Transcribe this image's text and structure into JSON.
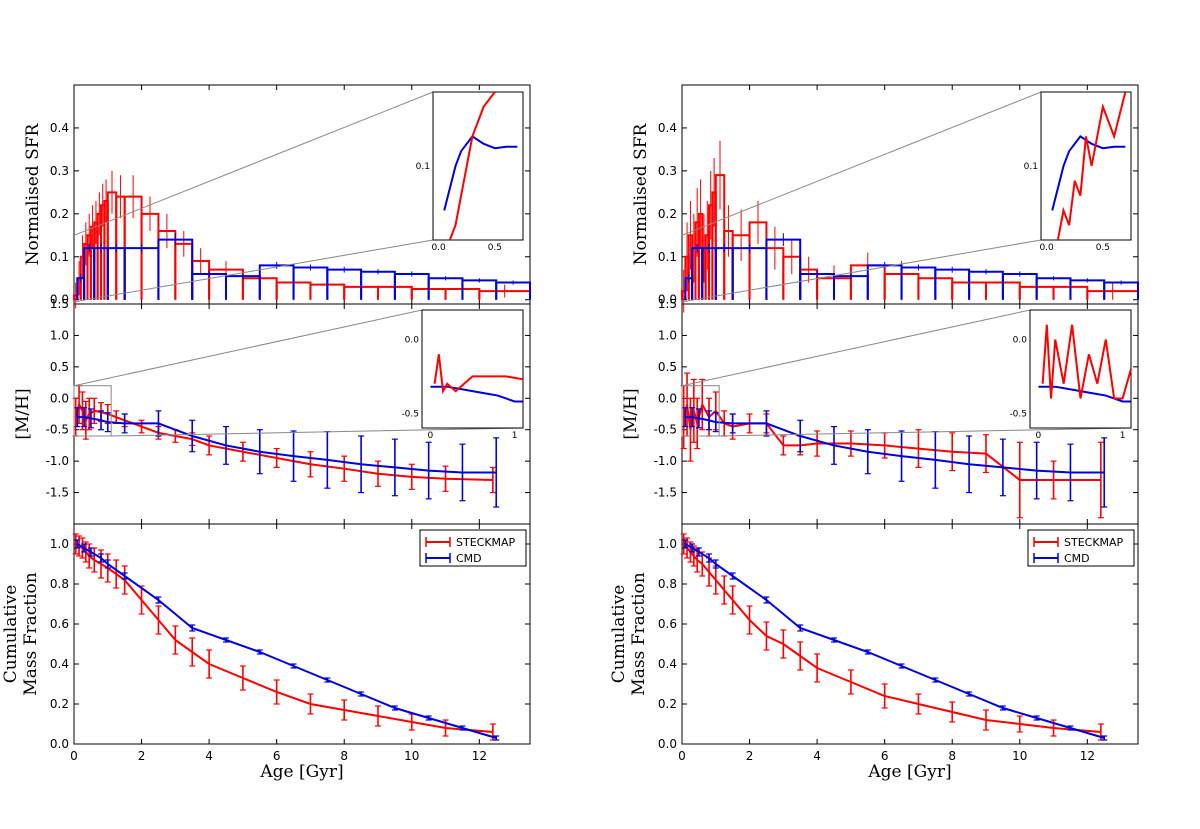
{
  "colors": {
    "steckmap": "#ff0000",
    "cmd": "#0000dd",
    "steckmap_light": "#ff9090",
    "frame": "#000000",
    "guide": "#888888"
  },
  "legend": {
    "steckmap": "STECKMAP",
    "cmd": "CMD"
  },
  "axes": {
    "sfr_ylabel": "Normalised SFR",
    "mh_ylabel": "[M/H]",
    "cmf_ylabel_line1": "Cumulative",
    "cmf_ylabel_line2": "Mass Fraction",
    "xlabel": "Age [Gyr]",
    "xlim": [
      0,
      13.5
    ],
    "x_ticks": [
      "0",
      "2",
      "4",
      "6",
      "8",
      "10",
      "12"
    ],
    "sfr_ylim": [
      -0.01,
      0.5
    ],
    "sfr_ticks": [
      "0.0",
      "0.1",
      "0.2",
      "0.3",
      "0.4"
    ],
    "mh_ylim": [
      -2.0,
      1.5
    ],
    "mh_ticks": [
      "1.5",
      "1.0",
      "0.5",
      "0.0",
      "-0.5",
      "-1.0",
      "-1.5"
    ],
    "cmf_ylim": [
      0.0,
      1.1
    ],
    "cmf_ticks": [
      "0.0",
      "0.2",
      "0.4",
      "0.6",
      "0.8",
      "1.0"
    ],
    "inset_sfr_ticks_y": [
      "0.1"
    ],
    "inset_sfr_ticks_x": [
      "0.0",
      "0.5"
    ],
    "inset_mh_ticks_y": [
      "0.0",
      "-0.5"
    ],
    "inset_mh_ticks_x": [
      "0",
      "1"
    ]
  },
  "chart_data": [
    {
      "panel": "left",
      "type": "line",
      "cmd": {
        "bins": [
          [
            0.1,
            0.3
          ],
          [
            0.3,
            0.6
          ],
          [
            0.6,
            1.0
          ],
          [
            1.0,
            1.5
          ],
          [
            1.5,
            2.5
          ],
          [
            2.5,
            3.5
          ],
          [
            3.5,
            4.5
          ],
          [
            4.5,
            5.5
          ],
          [
            5.5,
            6.5
          ],
          [
            6.5,
            7.5
          ],
          [
            7.5,
            8.5
          ],
          [
            8.5,
            9.5
          ],
          [
            9.5,
            10.5
          ],
          [
            10.5,
            11.5
          ],
          [
            11.5,
            12.5
          ],
          [
            12.5,
            13.5
          ]
        ],
        "sfr": [
          0.05,
          0.12,
          0.12,
          0.12,
          0.12,
          0.14,
          0.06,
          0.055,
          0.08,
          0.075,
          0.07,
          0.065,
          0.06,
          0.05,
          0.045,
          0.04
        ],
        "sfr_err": [
          0.01,
          0.01,
          0.01,
          0.01,
          0.01,
          0.015,
          0.008,
          0.008,
          0.008,
          0.007,
          0.007,
          0.006,
          0.006,
          0.005,
          0.005,
          0.005
        ],
        "age": [
          0.1,
          0.3,
          0.5,
          0.8,
          1.0,
          1.5,
          2.5,
          3.5,
          4.5,
          5.5,
          6.5,
          7.5,
          8.5,
          9.5,
          10.5,
          11.5,
          12.5
        ],
        "mh": [
          -0.3,
          -0.3,
          -0.32,
          -0.35,
          -0.38,
          -0.4,
          -0.4,
          -0.6,
          -0.75,
          -0.85,
          -0.92,
          -0.98,
          -1.05,
          -1.1,
          -1.15,
          -1.18,
          -1.18
        ],
        "mh_err": [
          0.15,
          0.15,
          0.15,
          0.15,
          0.15,
          0.15,
          0.2,
          0.25,
          0.3,
          0.35,
          0.4,
          0.45,
          0.45,
          0.45,
          0.45,
          0.45,
          0.55
        ],
        "cmf": [
          1.0,
          0.98,
          0.96,
          0.93,
          0.9,
          0.84,
          0.72,
          0.58,
          0.52,
          0.46,
          0.39,
          0.32,
          0.25,
          0.18,
          0.13,
          0.08,
          0.03
        ],
        "cmf_err": [
          0.02,
          0.02,
          0.02,
          0.02,
          0.02,
          0.015,
          0.015,
          0.015,
          0.01,
          0.01,
          0.01,
          0.01,
          0.01,
          0.01,
          0.01,
          0.01,
          0.01
        ]
      },
      "steckmap": {
        "bins": [
          [
            0.0,
            0.1
          ],
          [
            0.1,
            0.2
          ],
          [
            0.2,
            0.3
          ],
          [
            0.3,
            0.4
          ],
          [
            0.4,
            0.5
          ],
          [
            0.5,
            0.6
          ],
          [
            0.6,
            0.7
          ],
          [
            0.7,
            0.8
          ],
          [
            0.8,
            0.9
          ],
          [
            0.9,
            1.0
          ],
          [
            1.0,
            1.25
          ],
          [
            1.25,
            1.5
          ],
          [
            1.5,
            2.0
          ],
          [
            2.0,
            2.5
          ],
          [
            2.5,
            3.0
          ],
          [
            3.0,
            3.5
          ],
          [
            3.5,
            4.0
          ],
          [
            4.0,
            5.0
          ],
          [
            5.0,
            6.0
          ],
          [
            6.0,
            7.0
          ],
          [
            7.0,
            8.0
          ],
          [
            8.0,
            9.0
          ],
          [
            9.0,
            10.0
          ],
          [
            10.0,
            11.0
          ],
          [
            11.0,
            12.0
          ],
          [
            12.0,
            13.5
          ]
        ],
        "sfr": [
          0.01,
          0.05,
          0.1,
          0.13,
          0.15,
          0.17,
          0.18,
          0.2,
          0.22,
          0.23,
          0.25,
          0.24,
          0.24,
          0.2,
          0.16,
          0.13,
          0.09,
          0.07,
          0.05,
          0.04,
          0.035,
          0.03,
          0.03,
          0.025,
          0.025,
          0.02
        ],
        "sfr_err": [
          0.03,
          0.04,
          0.05,
          0.05,
          0.05,
          0.05,
          0.05,
          0.05,
          0.05,
          0.05,
          0.05,
          0.05,
          0.05,
          0.04,
          0.04,
          0.03,
          0.03,
          0.02,
          0.02,
          0.02,
          0.02,
          0.02,
          0.015,
          0.015,
          0.015,
          0.015
        ],
        "age": [
          0.05,
          0.15,
          0.25,
          0.35,
          0.45,
          0.6,
          0.8,
          1.0,
          1.25,
          1.5,
          2.0,
          2.5,
          3.0,
          3.5,
          4.0,
          5.0,
          6.0,
          7.0,
          8.0,
          9.0,
          10.0,
          11.0,
          12.4
        ],
        "mh": [
          -0.3,
          -0.1,
          -0.2,
          -0.35,
          -0.25,
          -0.2,
          -0.22,
          -0.25,
          -0.3,
          -0.35,
          -0.45,
          -0.55,
          -0.6,
          -0.65,
          -0.75,
          -0.85,
          -0.95,
          -1.05,
          -1.12,
          -1.2,
          -1.25,
          -1.28,
          -1.3
        ],
        "mh_err": [
          0.3,
          0.3,
          0.3,
          0.3,
          0.25,
          0.2,
          0.15,
          0.15,
          0.1,
          0.1,
          0.1,
          0.1,
          0.1,
          0.1,
          0.15,
          0.15,
          0.15,
          0.2,
          0.2,
          0.2,
          0.2,
          0.2,
          0.2
        ],
        "cmf": [
          1.0,
          0.99,
          0.98,
          0.96,
          0.94,
          0.92,
          0.9,
          0.88,
          0.85,
          0.82,
          0.72,
          0.62,
          0.52,
          0.46,
          0.4,
          0.33,
          0.26,
          0.2,
          0.17,
          0.14,
          0.11,
          0.08,
          0.06
        ],
        "cmf_err": [
          0.05,
          0.05,
          0.05,
          0.05,
          0.06,
          0.06,
          0.07,
          0.07,
          0.07,
          0.07,
          0.07,
          0.07,
          0.07,
          0.07,
          0.07,
          0.06,
          0.06,
          0.05,
          0.05,
          0.05,
          0.04,
          0.04,
          0.04
        ]
      }
    },
    {
      "panel": "right",
      "type": "line",
      "cmd": {
        "bins": [
          [
            0.1,
            0.3
          ],
          [
            0.3,
            0.6
          ],
          [
            0.6,
            1.0
          ],
          [
            1.0,
            1.5
          ],
          [
            1.5,
            2.5
          ],
          [
            2.5,
            3.5
          ],
          [
            3.5,
            4.5
          ],
          [
            4.5,
            5.5
          ],
          [
            5.5,
            6.5
          ],
          [
            6.5,
            7.5
          ],
          [
            7.5,
            8.5
          ],
          [
            8.5,
            9.5
          ],
          [
            9.5,
            10.5
          ],
          [
            10.5,
            11.5
          ],
          [
            11.5,
            12.5
          ],
          [
            12.5,
            13.5
          ]
        ],
        "sfr": [
          0.05,
          0.12,
          0.12,
          0.12,
          0.12,
          0.14,
          0.06,
          0.055,
          0.08,
          0.075,
          0.07,
          0.065,
          0.06,
          0.05,
          0.045,
          0.04
        ],
        "sfr_err": [
          0.01,
          0.01,
          0.01,
          0.01,
          0.01,
          0.015,
          0.008,
          0.008,
          0.008,
          0.007,
          0.007,
          0.006,
          0.006,
          0.005,
          0.005,
          0.005
        ],
        "age": [
          0.1,
          0.3,
          0.5,
          0.8,
          1.0,
          1.5,
          2.5,
          3.5,
          4.5,
          5.5,
          6.5,
          7.5,
          8.5,
          9.5,
          10.5,
          11.5,
          12.5
        ],
        "mh": [
          -0.3,
          -0.3,
          -0.32,
          -0.35,
          -0.38,
          -0.4,
          -0.4,
          -0.6,
          -0.75,
          -0.85,
          -0.92,
          -0.98,
          -1.05,
          -1.1,
          -1.15,
          -1.18,
          -1.18
        ],
        "mh_err": [
          0.15,
          0.15,
          0.15,
          0.15,
          0.15,
          0.15,
          0.2,
          0.25,
          0.3,
          0.35,
          0.4,
          0.45,
          0.45,
          0.45,
          0.45,
          0.45,
          0.55
        ],
        "cmf": [
          1.0,
          0.98,
          0.96,
          0.93,
          0.9,
          0.84,
          0.72,
          0.58,
          0.52,
          0.46,
          0.39,
          0.32,
          0.25,
          0.18,
          0.13,
          0.08,
          0.03
        ],
        "cmf_err": [
          0.02,
          0.02,
          0.02,
          0.02,
          0.02,
          0.015,
          0.015,
          0.015,
          0.01,
          0.01,
          0.01,
          0.01,
          0.01,
          0.01,
          0.01,
          0.01,
          0.01
        ]
      },
      "steckmap": {
        "bins": [
          [
            0.0,
            0.1
          ],
          [
            0.1,
            0.2
          ],
          [
            0.2,
            0.3
          ],
          [
            0.3,
            0.4
          ],
          [
            0.4,
            0.5
          ],
          [
            0.5,
            0.6
          ],
          [
            0.6,
            0.7
          ],
          [
            0.7,
            0.8
          ],
          [
            0.8,
            0.9
          ],
          [
            0.9,
            1.0
          ],
          [
            1.0,
            1.25
          ],
          [
            1.25,
            1.5
          ],
          [
            1.5,
            2.0
          ],
          [
            2.0,
            2.5
          ],
          [
            2.5,
            3.0
          ],
          [
            3.0,
            3.5
          ],
          [
            3.5,
            4.0
          ],
          [
            4.0,
            5.0
          ],
          [
            5.0,
            6.0
          ],
          [
            6.0,
            7.0
          ],
          [
            7.0,
            8.0
          ],
          [
            8.0,
            9.0
          ],
          [
            9.0,
            10.0
          ],
          [
            10.0,
            11.0
          ],
          [
            11.0,
            12.0
          ],
          [
            12.0,
            13.5
          ]
        ],
        "sfr": [
          0.02,
          0.1,
          0.15,
          0.12,
          0.18,
          0.2,
          0.12,
          0.15,
          0.22,
          0.25,
          0.29,
          0.16,
          0.15,
          0.18,
          0.12,
          0.1,
          0.07,
          0.05,
          0.08,
          0.06,
          0.05,
          0.04,
          0.04,
          0.03,
          0.03,
          0.02
        ],
        "sfr_err": [
          0.05,
          0.08,
          0.08,
          0.08,
          0.08,
          0.08,
          0.08,
          0.08,
          0.08,
          0.08,
          0.08,
          0.06,
          0.06,
          0.05,
          0.05,
          0.04,
          0.03,
          0.03,
          0.03,
          0.03,
          0.02,
          0.02,
          0.02,
          0.02,
          0.02,
          0.02
        ],
        "age": [
          0.05,
          0.15,
          0.25,
          0.35,
          0.45,
          0.6,
          0.8,
          1.0,
          1.25,
          1.5,
          2.0,
          2.5,
          3.0,
          3.5,
          4.0,
          5.0,
          6.0,
          7.0,
          8.0,
          9.0,
          10.0,
          11.0,
          12.4
        ],
        "mh": [
          -0.3,
          -0.1,
          -0.5,
          -0.2,
          -0.4,
          -0.1,
          -0.3,
          -0.2,
          -0.4,
          -0.45,
          -0.4,
          -0.4,
          -0.75,
          -0.75,
          -0.72,
          -0.72,
          -0.75,
          -0.8,
          -0.85,
          -0.88,
          -1.3,
          -1.3,
          -1.3
        ],
        "mh_err": [
          0.5,
          0.5,
          0.5,
          0.5,
          0.4,
          0.4,
          0.3,
          0.3,
          0.2,
          0.2,
          0.15,
          0.15,
          0.15,
          0.15,
          0.2,
          0.2,
          0.2,
          0.3,
          0.3,
          0.3,
          0.6,
          0.3,
          0.6
        ],
        "cmf": [
          1.0,
          0.98,
          0.96,
          0.94,
          0.92,
          0.9,
          0.86,
          0.82,
          0.77,
          0.72,
          0.62,
          0.54,
          0.5,
          0.44,
          0.38,
          0.31,
          0.24,
          0.2,
          0.16,
          0.12,
          0.1,
          0.08,
          0.06
        ],
        "cmf_err": [
          0.05,
          0.05,
          0.05,
          0.05,
          0.06,
          0.06,
          0.07,
          0.07,
          0.07,
          0.07,
          0.07,
          0.07,
          0.07,
          0.07,
          0.07,
          0.06,
          0.06,
          0.05,
          0.05,
          0.05,
          0.04,
          0.04,
          0.04
        ]
      }
    }
  ]
}
